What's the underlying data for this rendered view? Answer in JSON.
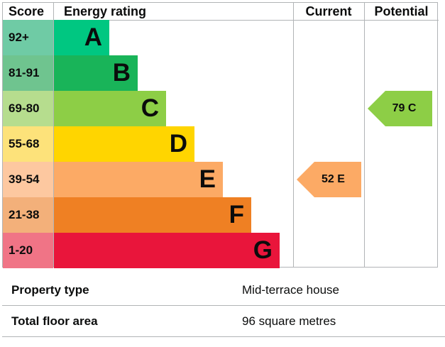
{
  "chart_header": {
    "score": "Score",
    "energy_rating": "Energy rating",
    "current": "Current",
    "potential": "Potential"
  },
  "bands": [
    {
      "score": "92+",
      "letter": "A",
      "color": "#00c781",
      "score_bg": "#6fcba5"
    },
    {
      "score": "81-91",
      "letter": "B",
      "color": "#19b459",
      "score_bg": "#6fc48f"
    },
    {
      "score": "69-80",
      "letter": "C",
      "color": "#8dce46",
      "score_bg": "#b6dd8e"
    },
    {
      "score": "55-68",
      "letter": "D",
      "color": "#ffd500",
      "score_bg": "#fde27a"
    },
    {
      "score": "39-54",
      "letter": "E",
      "color": "#fcaa65",
      "score_bg": "#fdc8a0"
    },
    {
      "score": "21-38",
      "letter": "F",
      "color": "#ef8023",
      "score_bg": "#f3b07a"
    },
    {
      "score": "1-20",
      "letter": "G",
      "color": "#e9153b",
      "score_bg": "#f07486"
    }
  ],
  "current": {
    "label": "52 E",
    "value": 52,
    "band": "E",
    "color": "#fcaa65"
  },
  "potential": {
    "label": "79 C",
    "value": 79,
    "band": "C",
    "color": "#8dce46"
  },
  "summary": [
    {
      "key": "Property type",
      "value": "Mid-terrace house"
    },
    {
      "key": "Total floor area",
      "value": "96 square metres"
    }
  ]
}
